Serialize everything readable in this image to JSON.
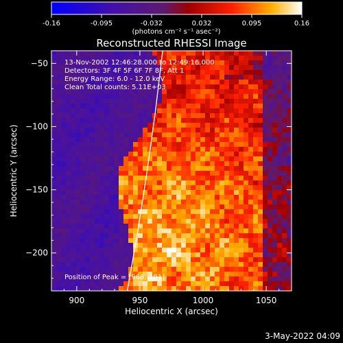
{
  "chart_data": {
    "type": "heatmap",
    "title": "Reconstructed RHESSI Image",
    "xlabel": "Heliocentric X (arcsec)",
    "ylabel": "Heliocentric Y (arcsec)",
    "xlim": [
      880,
      1070
    ],
    "ylim": [
      -230,
      -40
    ],
    "x_ticks": [
      900,
      950,
      1000,
      1050
    ],
    "y_ticks": [
      -50,
      -100,
      -150,
      -200
    ],
    "info_lines": [
      "13-Nov-2002 12:46:28.000 to 12:49:16.000",
      "Detectors: 3F 4F 5F 6F 7F 8F, Att 1",
      "Energy Range: 6.0 - 12.0 keV",
      "Clean    Total counts: 5.11E+03"
    ],
    "peak_label": "Position of Peak = [966,-191]",
    "peak": [
      966,
      -191
    ],
    "colorbar": {
      "range": [
        -0.16,
        0.16
      ],
      "ticks": [
        "-0.16",
        "-0.095",
        "-0.032",
        "0.032",
        "0.095",
        "0.16"
      ],
      "unit_label": "(photons cm⁻² s⁻¹ asec⁻²)"
    },
    "limb_arc": [
      [
        940,
        -230
      ],
      [
        948,
        -185
      ],
      [
        955,
        -140
      ],
      [
        962,
        -90
      ],
      [
        968,
        -40
      ]
    ],
    "grid": false
  },
  "footer": {
    "date": "3-May-2022 04:09"
  }
}
